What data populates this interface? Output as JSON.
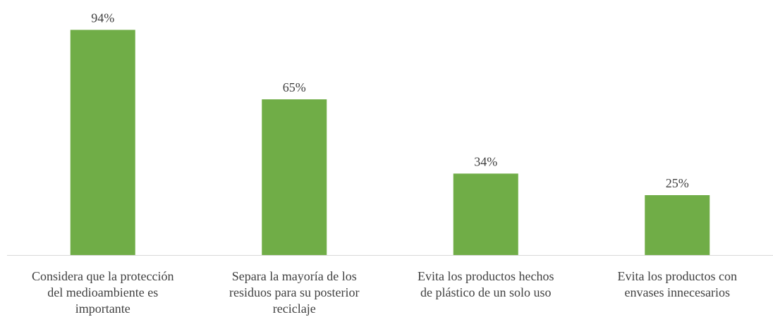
{
  "chart_data": {
    "type": "bar",
    "categories": [
      [
        "Considera que la protección",
        "del medioambiente es",
        "importante"
      ],
      [
        "Separa la mayoría de los",
        "residuos para su posterior",
        "reciclaje"
      ],
      [
        "Evita los productos hechos",
        "de plástico de un solo uso"
      ],
      [
        "Evita los productos con",
        "envases innecesarios"
      ]
    ],
    "values": [
      94,
      65,
      34,
      25
    ],
    "value_labels": [
      "94%",
      "65%",
      "34%",
      "25%"
    ],
    "ylim": [
      0,
      100
    ],
    "bar_color": "#70ad47",
    "axis_color": "#d9d9d9",
    "text_color": "#404040",
    "grid": false,
    "legend": "none"
  }
}
